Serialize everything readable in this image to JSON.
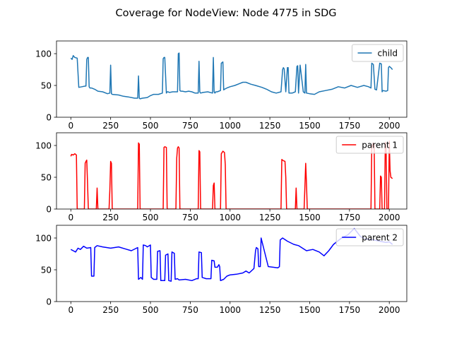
{
  "figure": {
    "title": "Coverage for NodeView: Node 4775 in SDG"
  },
  "chart_data": [
    {
      "type": "line",
      "title": "",
      "xlabel": "",
      "ylabel": "",
      "xlim": [
        -90,
        2110
      ],
      "ylim": [
        0,
        120
      ],
      "xticks": [
        0,
        250,
        500,
        750,
        1000,
        1250,
        1500,
        1750,
        2000
      ],
      "yticks": [
        0,
        50,
        100
      ],
      "legend": "top-right",
      "series": [
        {
          "name": "child",
          "color": "#1f77b4",
          "x": [
            0,
            8,
            15,
            25,
            40,
            50,
            70,
            90,
            95,
            100,
            105,
            110,
            115,
            120,
            130,
            150,
            170,
            200,
            230,
            245,
            250,
            255,
            260,
            300,
            330,
            360,
            400,
            420,
            425,
            430,
            435,
            450,
            480,
            500,
            520,
            550,
            575,
            580,
            585,
            590,
            600,
            605,
            610,
            620,
            640,
            660,
            670,
            675,
            680,
            685,
            690,
            700,
            720,
            740,
            760,
            780,
            800,
            805,
            810,
            815,
            830,
            860,
            890,
            895,
            900,
            905,
            910,
            920,
            940,
            945,
            955,
            960,
            965,
            980,
            1000,
            1030,
            1060,
            1080,
            1100,
            1130,
            1160,
            1200,
            1230,
            1260,
            1290,
            1320,
            1330,
            1335,
            1340,
            1350,
            1360,
            1365,
            1370,
            1390,
            1410,
            1420,
            1425,
            1430,
            1440,
            1460,
            1470,
            1475,
            1480,
            1500,
            1530,
            1560,
            1600,
            1640,
            1680,
            1720,
            1760,
            1800,
            1840,
            1870,
            1885,
            1890,
            1900,
            1910,
            1920,
            1940,
            1950,
            1955,
            1960,
            1980,
            1990,
            1995,
            2000,
            2010,
            2020
          ],
          "values": [
            93,
            91,
            97,
            94,
            93,
            47,
            48,
            49,
            49,
            91,
            94,
            94,
            48,
            46,
            46,
            44,
            41,
            40,
            37,
            38,
            82,
            37,
            36,
            35,
            33,
            32,
            30,
            30,
            65,
            30,
            29,
            30,
            31,
            34,
            36,
            36,
            38,
            92,
            94,
            94,
            38,
            40,
            40,
            39,
            40,
            40,
            40,
            100,
            101,
            42,
            41,
            41,
            40,
            41,
            40,
            38,
            38,
            88,
            40,
            38,
            39,
            40,
            38,
            94,
            40,
            38,
            40,
            40,
            42,
            85,
            87,
            43,
            44,
            46,
            48,
            50,
            53,
            55,
            55,
            52,
            50,
            47,
            44,
            40,
            38,
            40,
            75,
            78,
            76,
            40,
            78,
            78,
            38,
            38,
            40,
            80,
            81,
            38,
            82,
            40,
            38,
            83,
            38,
            37,
            36,
            40,
            42,
            44,
            48,
            46,
            50,
            47,
            50,
            48,
            46,
            85,
            83,
            44,
            43,
            85,
            84,
            40,
            42,
            41,
            42,
            78,
            80,
            78,
            75
          ]
        }
      ]
    },
    {
      "type": "line",
      "title": "",
      "xlabel": "",
      "ylabel": "",
      "xlim": [
        -90,
        2110
      ],
      "ylim": [
        0,
        120
      ],
      "xticks": [
        0,
        250,
        500,
        750,
        1000,
        1250,
        1500,
        1750,
        2000
      ],
      "yticks": [
        0,
        50,
        100
      ],
      "legend": "top-right",
      "series": [
        {
          "name": "parent 1",
          "color": "#ff0000",
          "x": [
            0,
            5,
            15,
            25,
            35,
            40,
            85,
            90,
            95,
            100,
            105,
            110,
            115,
            160,
            165,
            170,
            240,
            245,
            250,
            255,
            260,
            420,
            425,
            430,
            435,
            580,
            585,
            590,
            600,
            605,
            660,
            665,
            670,
            675,
            680,
            685,
            800,
            805,
            810,
            815,
            890,
            895,
            900,
            905,
            940,
            945,
            955,
            965,
            970,
            975,
            1320,
            1325,
            1335,
            1345,
            1350,
            1355,
            1410,
            1415,
            1420,
            1425,
            1465,
            1470,
            1475,
            1480,
            1485,
            1885,
            1890,
            1895,
            1900,
            1905,
            1910,
            1940,
            1945,
            1950,
            1955,
            1970,
            1975,
            1980,
            1985,
            1995,
            2000,
            2005,
            2010,
            2020
          ],
          "values": [
            83,
            86,
            85,
            87,
            85,
            0,
            0,
            72,
            75,
            77,
            40,
            0,
            0,
            0,
            33,
            0,
            0,
            30,
            75,
            72,
            0,
            0,
            104,
            102,
            0,
            0,
            97,
            98,
            97,
            0,
            0,
            80,
            96,
            98,
            96,
            0,
            0,
            92,
            90,
            0,
            0,
            37,
            41,
            0,
            0,
            87,
            91,
            89,
            70,
            0,
            0,
            78,
            76,
            75,
            50,
            0,
            0,
            33,
            0,
            0,
            0,
            35,
            72,
            40,
            0,
            0,
            98,
            100,
            104,
            100,
            0,
            0,
            52,
            50,
            0,
            0,
            105,
            95,
            0,
            0,
            107,
            60,
            50,
            48
          ]
        }
      ]
    },
    {
      "type": "line",
      "title": "",
      "xlabel": "",
      "ylabel": "",
      "xlim": [
        -90,
        2110
      ],
      "ylim": [
        0,
        120
      ],
      "xticks": [
        0,
        250,
        500,
        750,
        1000,
        1250,
        1500,
        1750,
        2000
      ],
      "yticks": [
        0,
        50,
        100
      ],
      "legend": "top-right",
      "series": [
        {
          "name": "parent 2",
          "color": "#0000ff",
          "x": [
            0,
            15,
            30,
            45,
            60,
            80,
            100,
            125,
            130,
            145,
            150,
            165,
            200,
            250,
            300,
            340,
            380,
            420,
            425,
            440,
            450,
            455,
            470,
            480,
            500,
            505,
            520,
            540,
            545,
            560,
            565,
            590,
            595,
            610,
            615,
            630,
            635,
            650,
            655,
            670,
            680,
            720,
            760,
            790,
            800,
            805,
            820,
            825,
            850,
            880,
            885,
            900,
            905,
            920,
            930,
            935,
            940,
            960,
            980,
            1000,
            1040,
            1080,
            1100,
            1120,
            1150,
            1160,
            1165,
            1175,
            1180,
            1190,
            1195,
            1240,
            1300,
            1310,
            1315,
            1330,
            1360,
            1400,
            1430,
            1480,
            1520,
            1560,
            1590,
            1620,
            1650,
            1700,
            1740,
            1780,
            1820,
            1860,
            1900,
            1940,
            1980,
            2000,
            2020
          ],
          "values": [
            82,
            80,
            78,
            84,
            82,
            87,
            84,
            85,
            40,
            40,
            85,
            88,
            86,
            84,
            86,
            83,
            80,
            85,
            35,
            38,
            35,
            89,
            88,
            86,
            89,
            38,
            35,
            35,
            79,
            80,
            33,
            33,
            73,
            75,
            33,
            32,
            78,
            76,
            35,
            36,
            34,
            35,
            33,
            36,
            36,
            78,
            77,
            38,
            36,
            36,
            65,
            64,
            54,
            54,
            58,
            55,
            33,
            35,
            40,
            42,
            43,
            45,
            48,
            45,
            52,
            80,
            85,
            83,
            55,
            55,
            100,
            55,
            53,
            55,
            97,
            100,
            95,
            90,
            88,
            80,
            82,
            78,
            72,
            80,
            90,
            100,
            105,
            115,
            102,
            98,
            97,
            95,
            93,
            94,
            90
          ]
        }
      ]
    }
  ]
}
